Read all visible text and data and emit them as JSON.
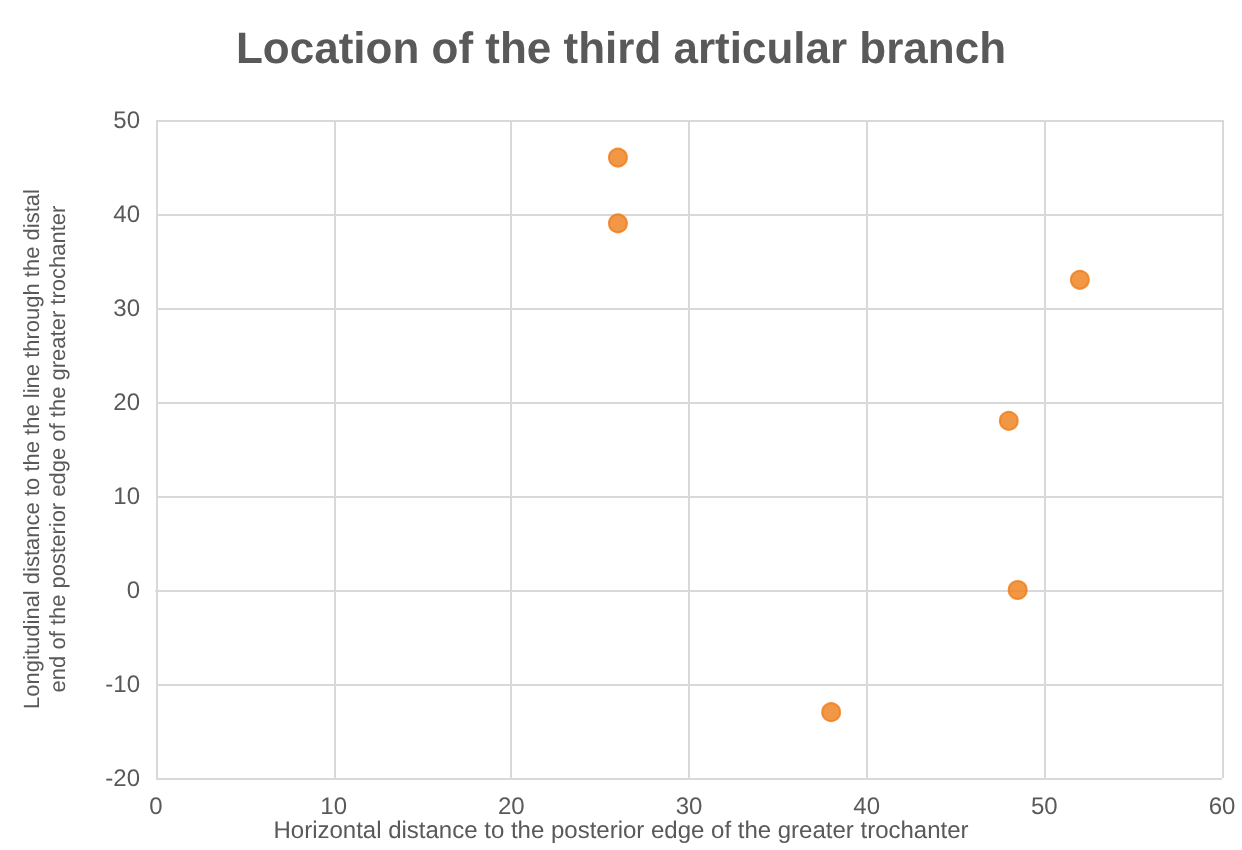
{
  "chart_data": {
    "type": "scatter",
    "title": "Location of the third articular branch",
    "xlabel": "Horizontal distance to the posterior edge of the greater trochanter",
    "ylabel": "Longitudinal distance to the the line through the distal end of the posterior edge of the greater trochanter",
    "x": [
      26,
      26,
      52,
      48,
      48.5,
      38
    ],
    "series": [
      {
        "color": "#ed7d18",
        "values": [
          46,
          39,
          33,
          18,
          0,
          -13
        ]
      }
    ],
    "xlim": [
      0,
      60
    ],
    "xticks": [
      0,
      10,
      20,
      30,
      40,
      50,
      60
    ],
    "ylim": [
      -20,
      50
    ],
    "yticks": [
      -20,
      -10,
      0,
      10,
      20,
      30,
      40,
      50
    ],
    "grid": true,
    "marker": "circle"
  }
}
